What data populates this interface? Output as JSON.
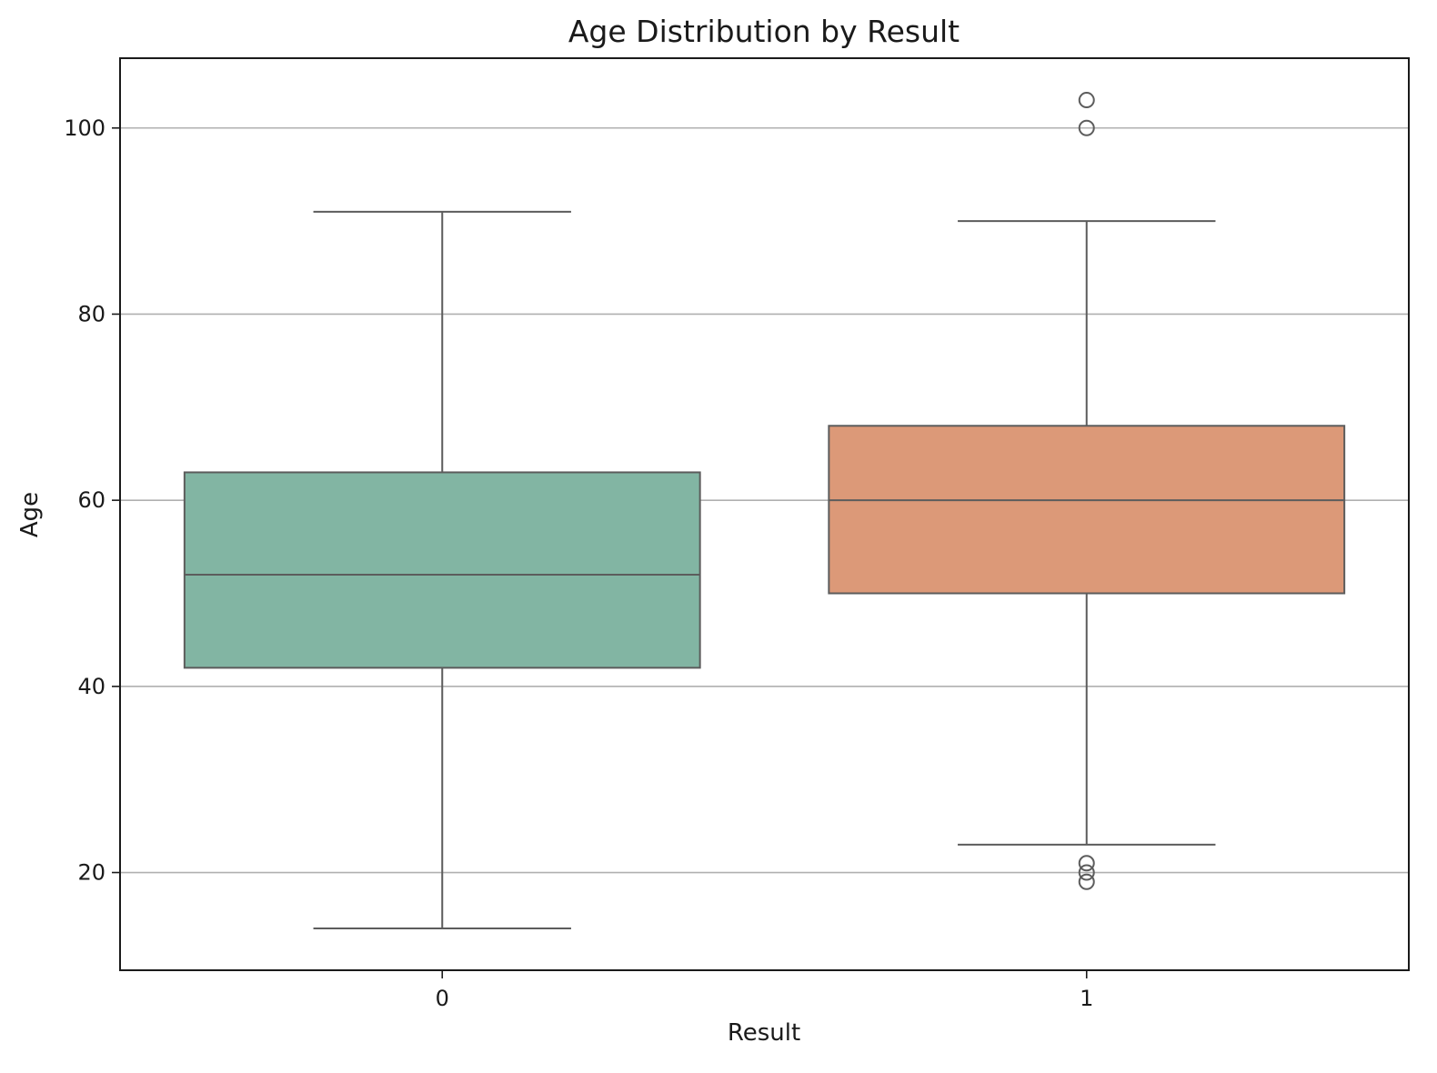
{
  "chart_data": {
    "type": "box",
    "title": "Age Distribution by Result",
    "xlabel": "Result",
    "ylabel": "Age",
    "ylim": [
      9.5,
      107.5
    ],
    "yticks": [
      20,
      40,
      60,
      80,
      100
    ],
    "categories": [
      "0",
      "1"
    ],
    "grid": "y",
    "legend": "none",
    "colors": [
      "#82b5a3",
      "#dc9978"
    ],
    "line_color": "#5c5c5c",
    "boxes": [
      {
        "category": "0",
        "whisker_low": 14,
        "q1": 42,
        "median": 52,
        "q3": 63,
        "whisker_high": 91,
        "outliers": []
      },
      {
        "category": "1",
        "whisker_low": 23,
        "q1": 50,
        "median": 60,
        "q3": 68,
        "whisker_high": 90,
        "outliers": [
          19,
          20,
          21,
          100,
          103
        ]
      }
    ]
  }
}
